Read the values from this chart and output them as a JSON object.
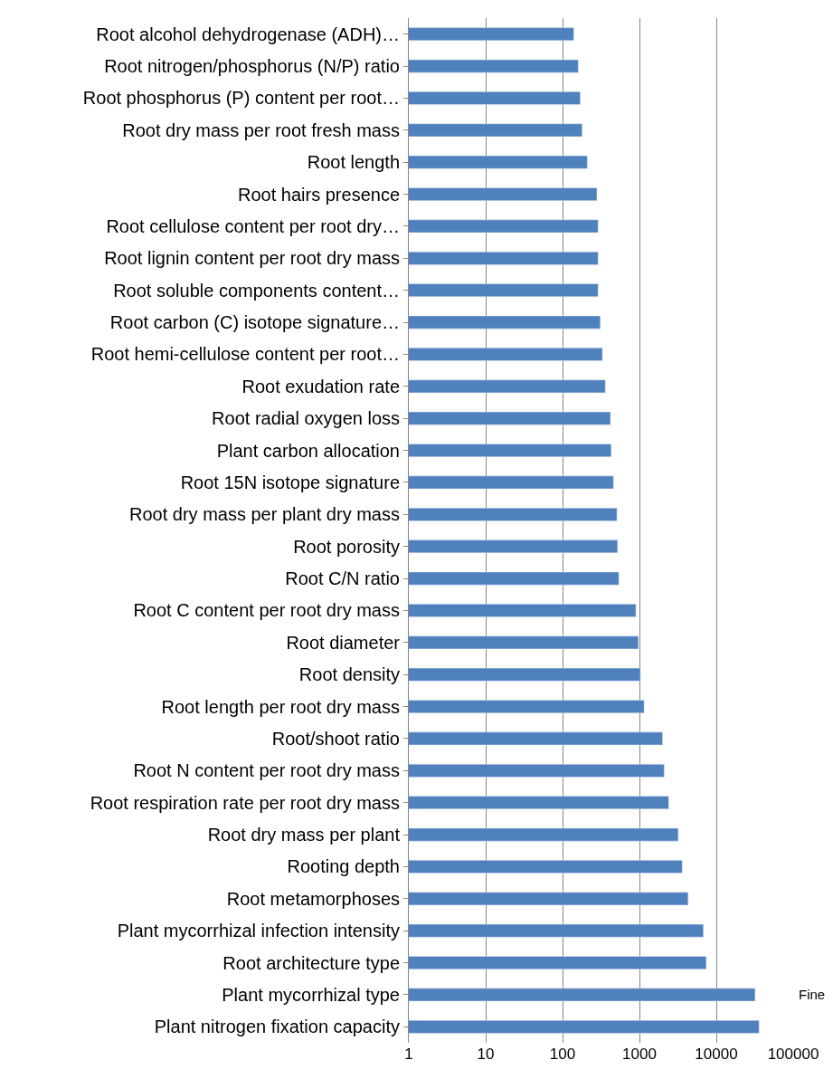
{
  "chart_data": {
    "type": "bar",
    "orientation": "horizontal",
    "log": "x",
    "grid": "x",
    "categories": [
      "Root alcohol dehydrogenase (ADH)…",
      "Root nitrogen/phosphorus (N/P) ratio",
      "Root phosphorus (P) content per root…",
      "Root dry mass per root fresh mass",
      "Root length",
      "Root hairs presence",
      "Root cellulose content per root dry…",
      "Root lignin content per root dry mass",
      "Root soluble components content…",
      "Root carbon (C) isotope signature…",
      "Root hemi-cellulose content per root…",
      "Root exudation rate",
      "Root radial oxygen loss",
      "Plant carbon allocation",
      "Root 15N isotope signature",
      "Root dry mass per plant dry mass",
      "Root porosity",
      "Root C/N ratio",
      "Root C content per root dry mass",
      "Root diameter",
      "Root density",
      "Root length per root dry mass",
      "Root/shoot ratio",
      "Root N content per root dry mass",
      "Root respiration rate per root dry mass",
      "Root dry mass per plant",
      "Rooting depth",
      "Root metamorphoses",
      "Plant mycorrhizal infection intensity",
      "Root architecture type",
      "Plant mycorrhizal type",
      "Plant nitrogen fixation capacity"
    ],
    "values": [
      140,
      160,
      170,
      180,
      210,
      280,
      290,
      290,
      290,
      310,
      330,
      360,
      420,
      430,
      460,
      510,
      520,
      540,
      900,
      970,
      1030,
      1150,
      2000,
      2100,
      2400,
      3200,
      3600,
      4300,
      6800,
      7400,
      32000,
      36000
    ],
    "color": "#4f81bd",
    "xlim": [
      1,
      100000
    ],
    "xticks": [
      1,
      10,
      100,
      1000,
      10000,
      100000
    ],
    "annotations": [
      "Fine"
    ]
  }
}
